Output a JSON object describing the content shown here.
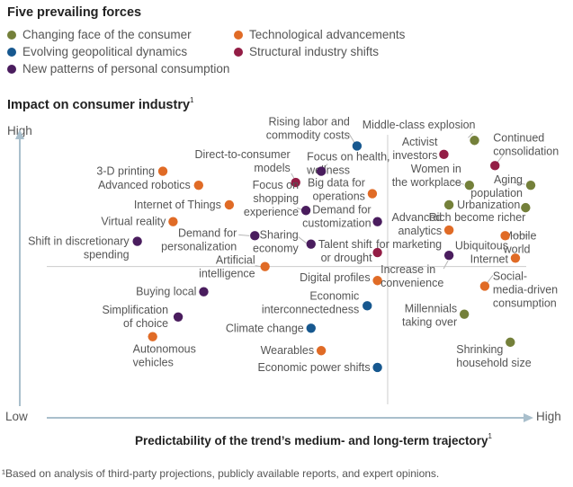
{
  "title": "Five prevailing forces",
  "legend": [
    {
      "label": "Changing face of the consumer",
      "color": "#74803a"
    },
    {
      "label": "Technological advancements",
      "color": "#e06b26"
    },
    {
      "label": "Evolving geopolitical dynamics",
      "color": "#17588f"
    },
    {
      "label": "Structural industry shifts",
      "color": "#931d45"
    },
    {
      "label": "New patterns of personal consumption",
      "color": "#4a1d5e"
    }
  ],
  "footnote": "¹Based on analysis of third-party projections, publicly available reports, and expert opinions.",
  "chart_data": {
    "type": "scatter",
    "title": "Impact on consumer industry",
    "title_footnote_mark": "1",
    "xlabel": "Predictability of the trend’s medium- and long-term trajectory",
    "xlabel_footnote_mark": "1",
    "ylabel": "Impact on consumer industry",
    "x_ticks": {
      "low": "Low",
      "high": "High"
    },
    "y_ticks": {
      "low": "Low",
      "high": "High"
    },
    "xlim": [
      0,
      100
    ],
    "ylim": [
      0,
      100
    ],
    "quadrant_dividers": {
      "x": 72,
      "y": 53
    },
    "grid": false,
    "legend_position": "top",
    "categories": {
      "consumer": "Changing face of the consumer",
      "tech": "Technological advancements",
      "geo": "Evolving geopolitical dynamics",
      "structural": "Structural industry shifts",
      "personal": "New patterns of personal consumption"
    },
    "points": [
      {
        "label": "3-D printing",
        "category": "tech",
        "x": 28,
        "y": 87
      },
      {
        "label": "Advanced robotics",
        "category": "tech",
        "x": 35,
        "y": 82
      },
      {
        "label": "Internet of Things",
        "category": "tech",
        "x": 41,
        "y": 75
      },
      {
        "label": "Virtual reality",
        "category": "tech",
        "x": 30,
        "y": 69
      },
      {
        "label": "Shift in discretionary spending",
        "category": "personal",
        "x": 23,
        "y": 62
      },
      {
        "label": "Demand for personalization",
        "category": "personal",
        "x": 46,
        "y": 64
      },
      {
        "label": "Sharing economy",
        "category": "personal",
        "x": 57,
        "y": 61
      },
      {
        "label": "Artificial intelligence",
        "category": "tech",
        "x": 48,
        "y": 53
      },
      {
        "label": "Rising labor and commodity costs",
        "category": "geo",
        "x": 66,
        "y": 96
      },
      {
        "label": "Direct-to-consumer models",
        "category": "structural",
        "x": 54,
        "y": 83
      },
      {
        "label": "Focus on health, wellness",
        "category": "personal",
        "x": 59,
        "y": 87
      },
      {
        "label": "Big data for operations",
        "category": "tech",
        "x": 69,
        "y": 79
      },
      {
        "label": "Focus on shopping experience",
        "category": "personal",
        "x": 56,
        "y": 73
      },
      {
        "label": "Demand for customization",
        "category": "personal",
        "x": 70,
        "y": 69
      },
      {
        "label": "Talent shift or drought",
        "category": "structural",
        "x": 70,
        "y": 58
      },
      {
        "label": "Digital profiles",
        "category": "tech",
        "x": 70,
        "y": 48
      },
      {
        "label": "Economic interconnectedness",
        "category": "geo",
        "x": 68,
        "y": 39
      },
      {
        "label": "Climate change",
        "category": "geo",
        "x": 57,
        "y": 31
      },
      {
        "label": "Wearables",
        "category": "tech",
        "x": 59,
        "y": 23
      },
      {
        "label": "Economic power shifts",
        "category": "geo",
        "x": 70,
        "y": 17
      },
      {
        "label": "Buying local",
        "category": "personal",
        "x": 36,
        "y": 44
      },
      {
        "label": "Simplification of choice",
        "category": "personal",
        "x": 31,
        "y": 35
      },
      {
        "label": "Autonomous vehicles",
        "category": "tech",
        "x": 26,
        "y": 28
      },
      {
        "label": "Middle-class explosion",
        "category": "consumer",
        "x": 89,
        "y": 98
      },
      {
        "label": "Activist investors",
        "category": "structural",
        "x": 83,
        "y": 93
      },
      {
        "label": "Continued consolidation",
        "category": "structural",
        "x": 93,
        "y": 89
      },
      {
        "label": "Women in the workplace",
        "category": "consumer",
        "x": 88,
        "y": 82
      },
      {
        "label": "Aging population",
        "category": "consumer",
        "x": 100,
        "y": 82
      },
      {
        "label": "Urbanization",
        "category": "consumer",
        "x": 84,
        "y": 75
      },
      {
        "label": "Rich become richer",
        "category": "consumer",
        "x": 99,
        "y": 74
      },
      {
        "label": "Advanced analytics for marketing",
        "category": "tech",
        "x": 84,
        "y": 66
      },
      {
        "label": "Mobile world",
        "category": "tech",
        "x": 95,
        "y": 64
      },
      {
        "label": "Ubiquitous Internet",
        "category": "tech",
        "x": 97,
        "y": 56
      },
      {
        "label": "Increase in convenience",
        "category": "personal",
        "x": 84,
        "y": 57
      },
      {
        "label": "Social-media-driven consumption",
        "category": "tech",
        "x": 91,
        "y": 46
      },
      {
        "label": "Millennials taking over",
        "category": "consumer",
        "x": 87,
        "y": 36
      },
      {
        "label": "Shrinking household size",
        "category": "consumer",
        "x": 96,
        "y": 26
      }
    ]
  }
}
